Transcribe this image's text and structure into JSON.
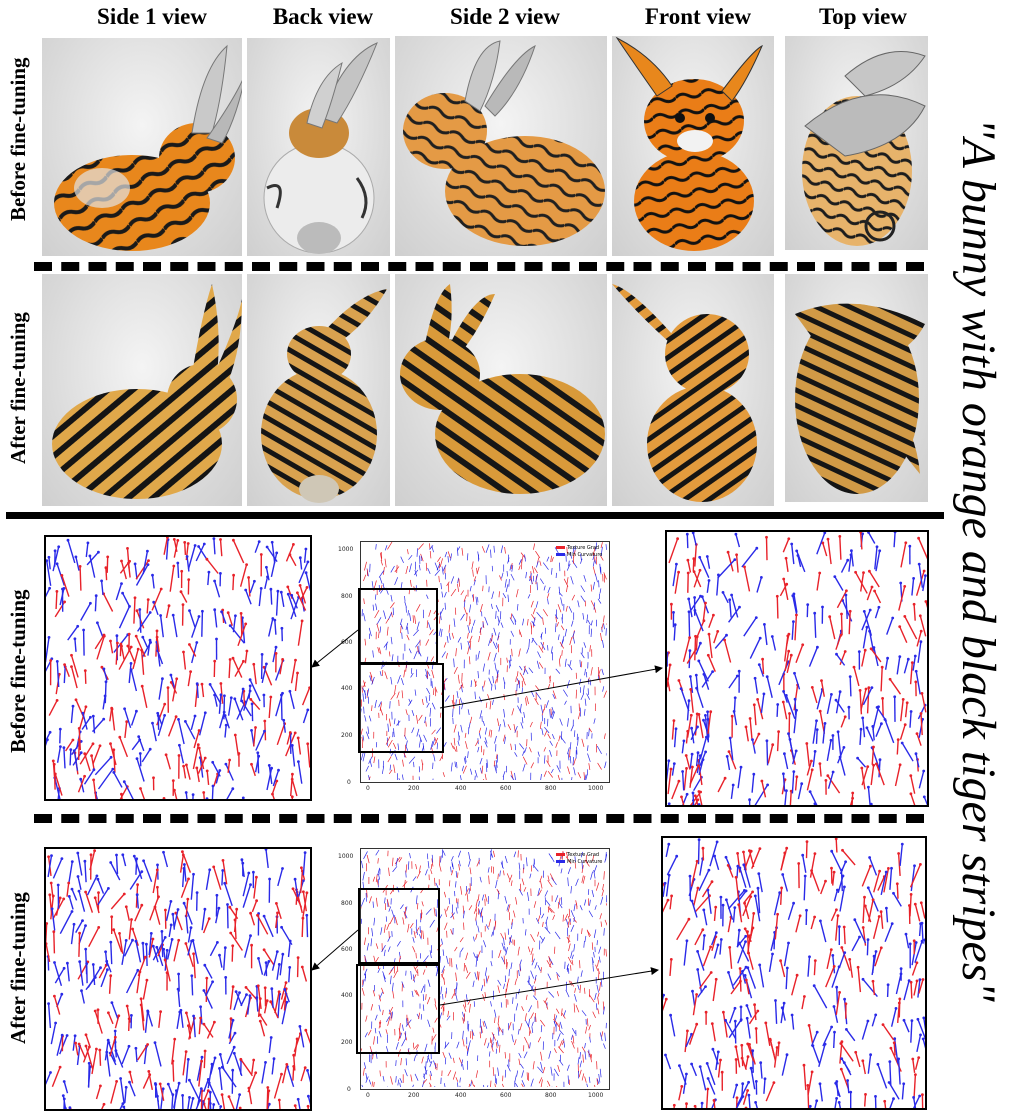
{
  "columns": [
    "Side 1 view",
    "Back view",
    "Side 2 view",
    "Front view",
    "Top view"
  ],
  "row_labels": {
    "top_before": "Before fine-tuning",
    "top_after": "After fine-tuning",
    "bottom_before": "Before fine-tuning",
    "bottom_after": "After fine-tuning"
  },
  "prompt": "\"A bunny with orange and black tiger stripes\"",
  "plot": {
    "legend": [
      "Texture Grad",
      "Min Curvature"
    ],
    "x_ticks": [
      "0",
      "200",
      "400",
      "600",
      "800",
      "1000"
    ],
    "y_ticks": [
      "1000",
      "800",
      "600",
      "400",
      "200",
      "0"
    ]
  },
  "colors": {
    "texture_grad": "#e8222a",
    "min_curvature": "#2a2ae8",
    "orange": "#e8871c",
    "black": "#111111"
  }
}
